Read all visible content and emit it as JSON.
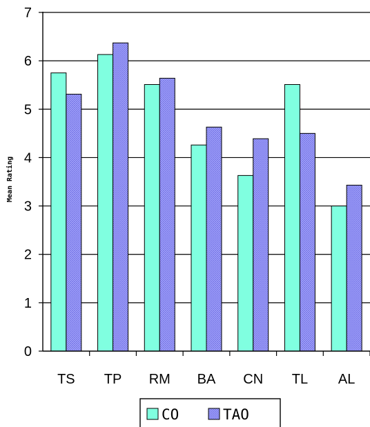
{
  "chart_data": {
    "type": "bar",
    "title": "",
    "xlabel": "",
    "ylabel": "Mean Rating",
    "categories": [
      "TS",
      "TP",
      "RM",
      "BA",
      "CN",
      "TL",
      "AL"
    ],
    "series": [
      {
        "name": "CO",
        "values": [
          5.75,
          6.13,
          5.51,
          4.26,
          3.63,
          5.51,
          3.0
        ],
        "color": "#80ffe0"
      },
      {
        "name": "TAO",
        "values": [
          5.31,
          6.37,
          5.64,
          4.63,
          4.39,
          4.5,
          3.43
        ],
        "color": "#9999ff",
        "pattern": "crosshatch"
      }
    ],
    "ylim": [
      0,
      7
    ],
    "yticks": [
      "0",
      "1",
      "2",
      "3",
      "4",
      "5",
      "6",
      "7"
    ],
    "grid": true,
    "legend_position": "bottom-center"
  }
}
